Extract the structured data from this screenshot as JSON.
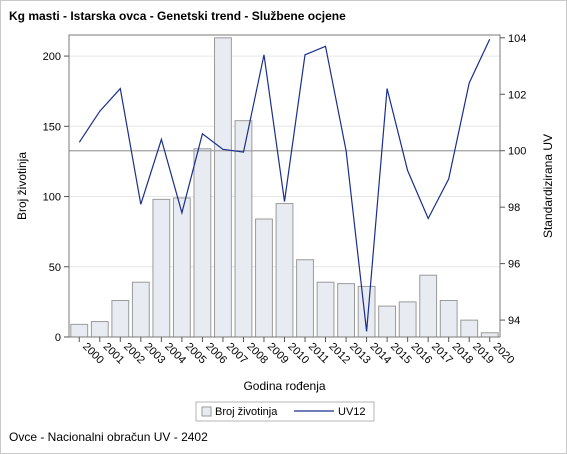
{
  "title": "Kg masti - Istarska ovca - Genetski trend - Službene ocjene",
  "footnote": "Ovce - Nacionalni obračun UV - 2402",
  "chart_data": {
    "type": "bar",
    "categories": [
      "2000",
      "2001",
      "2002",
      "2003",
      "2004",
      "2005",
      "2006",
      "2007",
      "2008",
      "2009",
      "2010",
      "2011",
      "2012",
      "2013",
      "2014",
      "2015",
      "2016",
      "2017",
      "2018",
      "2019",
      "2020"
    ],
    "series": [
      {
        "name": "Broj životinja",
        "type": "bar",
        "axis": "left",
        "color": "#e8ecf2",
        "values": [
          9,
          11,
          26,
          39,
          98,
          99,
          134,
          213,
          154,
          84,
          95,
          55,
          39,
          38,
          36,
          22,
          25,
          44,
          26,
          12,
          3
        ]
      },
      {
        "name": "UV12",
        "type": "line",
        "axis": "right",
        "color": "#1a2f8c",
        "values": [
          100.3,
          101.4,
          102.2,
          98.1,
          100.4,
          97.8,
          100.6,
          100.05,
          99.95,
          103.4,
          98.2,
          103.4,
          103.7,
          100.0,
          93.6,
          102.2,
          99.3,
          97.6,
          99.0,
          102.4,
          103.95
        ]
      }
    ],
    "xlabel": "Godina rođenja",
    "ylabel_left": "Broj životinja",
    "ylabel_right": "Standardizirana UV",
    "ylim_left": [
      0,
      215
    ],
    "yticks_left": [
      0,
      50,
      100,
      150,
      200
    ],
    "ylim_right": [
      93.4,
      104.1
    ],
    "yticks_right": [
      94,
      96,
      98,
      100,
      102,
      104
    ],
    "reference_line_right": 100,
    "grid": true,
    "legend_position": "bottom"
  },
  "colors": {
    "bar_fill": "#e8ecf2",
    "bar_stroke": "#9a9a9a",
    "line": "#1a2f8c",
    "grid": "#e6e6e6",
    "reference": "#a0a0a0"
  }
}
